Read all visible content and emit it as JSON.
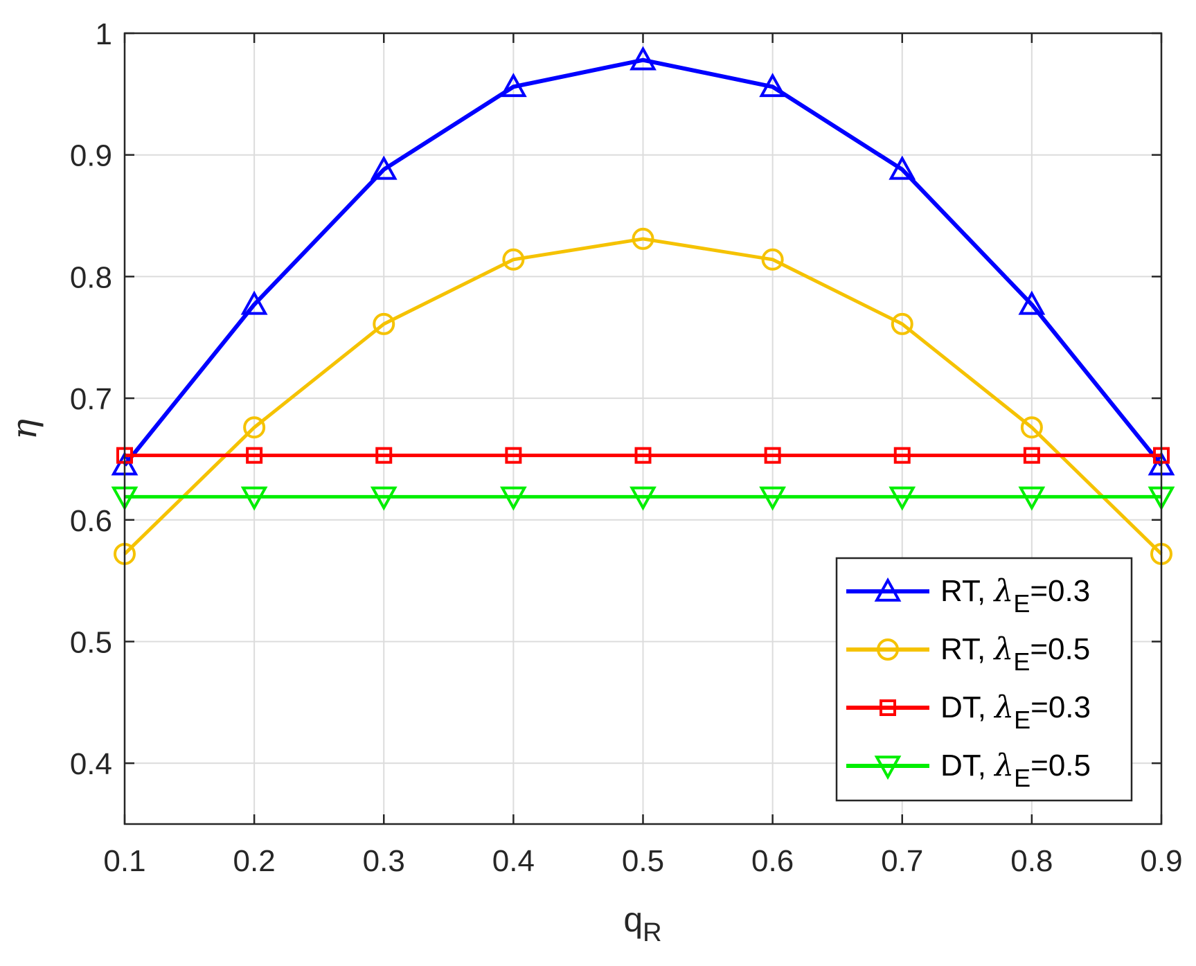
{
  "chart_data": {
    "type": "line",
    "xlabel": "q",
    "xlabel_sub": "R",
    "ylabel": "η",
    "xlim": [
      0.1,
      0.9
    ],
    "ylim": [
      0.35,
      1.0
    ],
    "x_ticks": [
      "0.1",
      "0.2",
      "0.3",
      "0.4",
      "0.5",
      "0.6",
      "0.7",
      "0.8",
      "0.9"
    ],
    "y_ticks": [
      "0.4",
      "0.5",
      "0.6",
      "0.7",
      "0.8",
      "0.9",
      "1"
    ],
    "x_tick_values": [
      0.1,
      0.2,
      0.3,
      0.4,
      0.5,
      0.6,
      0.7,
      0.8,
      0.9
    ],
    "y_tick_values": [
      0.4,
      0.5,
      0.6,
      0.7,
      0.8,
      0.9,
      1.0
    ],
    "grid": true,
    "legend_position": "bottom-right",
    "x": [
      0.1,
      0.2,
      0.3,
      0.4,
      0.5,
      0.6,
      0.7,
      0.8,
      0.9
    ],
    "series": [
      {
        "name_prefix": "RT,",
        "name_symbol": "λ",
        "name_sub": "E",
        "name_suffix": "=0.3",
        "color": "#0000ff",
        "marker": "triangle-up",
        "values": [
          0.645,
          0.777,
          0.888,
          0.956,
          0.978,
          0.956,
          0.888,
          0.777,
          0.645
        ]
      },
      {
        "name_prefix": "RT,",
        "name_symbol": "λ",
        "name_sub": "E",
        "name_suffix": "=0.5",
        "color": "#f5c200",
        "marker": "circle",
        "values": [
          0.572,
          0.676,
          0.761,
          0.814,
          0.831,
          0.814,
          0.761,
          0.676,
          0.572
        ]
      },
      {
        "name_prefix": "DT,",
        "name_symbol": "λ",
        "name_sub": "E",
        "name_suffix": "=0.3",
        "color": "#ff0000",
        "marker": "square",
        "values": [
          0.653,
          0.653,
          0.653,
          0.653,
          0.653,
          0.653,
          0.653,
          0.653,
          0.653
        ]
      },
      {
        "name_prefix": "DT,",
        "name_symbol": "λ",
        "name_sub": "E",
        "name_suffix": "=0.5",
        "color": "#00ee00",
        "marker": "triangle-down",
        "values": [
          0.619,
          0.619,
          0.619,
          0.619,
          0.619,
          0.619,
          0.619,
          0.619,
          0.619
        ]
      }
    ]
  }
}
